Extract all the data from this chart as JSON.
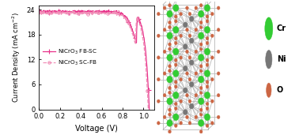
{
  "title": "",
  "xlabel": "Voltage (V)",
  "ylabel": "Current Density (mA cm$^{-2}$)",
  "xlim": [
    0.0,
    1.1
  ],
  "ylim": [
    0,
    25
  ],
  "yticks": [
    0,
    6,
    12,
    18,
    24
  ],
  "xticks": [
    0.0,
    0.2,
    0.4,
    0.6,
    0.8,
    1.0
  ],
  "fb_sc_color": "#e8318a",
  "sc_fb_color": "#f090b8",
  "jsc_fb": 23.5,
  "jsc_sc": 23.2,
  "voc_fb": 1.055,
  "voc_sc": 1.045,
  "n_fb": 1.5,
  "n_sc": 1.5,
  "rs_fb": 0.005,
  "rs_sc": 0.005,
  "legend_label_fb": "NiCrO$_3$ FB-SC",
  "legend_label_sc": "NiCrO$_3$ SC-FB",
  "bg_color": "#ffffff",
  "crystal_legend": [
    {
      "label": "Cr",
      "color": "#33cc33"
    },
    {
      "label": "Ni",
      "color": "#777777"
    },
    {
      "label": "O",
      "color": "#cc6644"
    }
  ],
  "bond_color": "#bbbbbb",
  "cell_line_color": "#aaaaaa"
}
